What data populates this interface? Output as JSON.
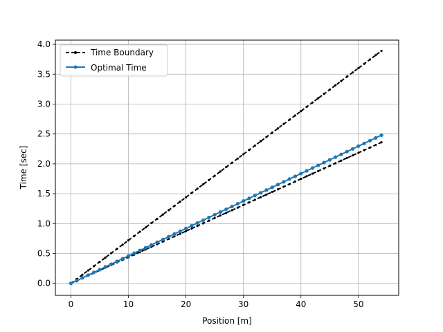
{
  "chart_data": {
    "type": "line",
    "xlabel": "Position [m]",
    "ylabel": "Time [sec]",
    "xlim": [
      -2.7,
      57.0
    ],
    "ylim": [
      -0.2,
      4.07
    ],
    "xticks": [
      "0",
      "10",
      "20",
      "30",
      "40",
      "50"
    ],
    "yticks": [
      "0.0",
      "0.5",
      "1.0",
      "1.5",
      "2.0",
      "2.5",
      "3.0",
      "3.5",
      "4.0"
    ],
    "grid": true,
    "legend_position": "upper-left",
    "legend": [
      "Time Boundary",
      "Optimal Time"
    ],
    "series": [
      {
        "name": "Time Boundary",
        "style": "dashed-dot",
        "color": "#000000",
        "x": [
          0,
          54
        ],
        "y": [
          0,
          3.89
        ]
      },
      {
        "name": "Time Boundary",
        "style": "dashed-dot",
        "color": "#000000",
        "x": [
          0,
          54
        ],
        "y": [
          0,
          2.36
        ]
      },
      {
        "name": "Optimal Time",
        "style": "solid-dot",
        "color": "#1f77b4",
        "x": [
          0,
          54
        ],
        "y": [
          0,
          2.48
        ]
      }
    ]
  }
}
